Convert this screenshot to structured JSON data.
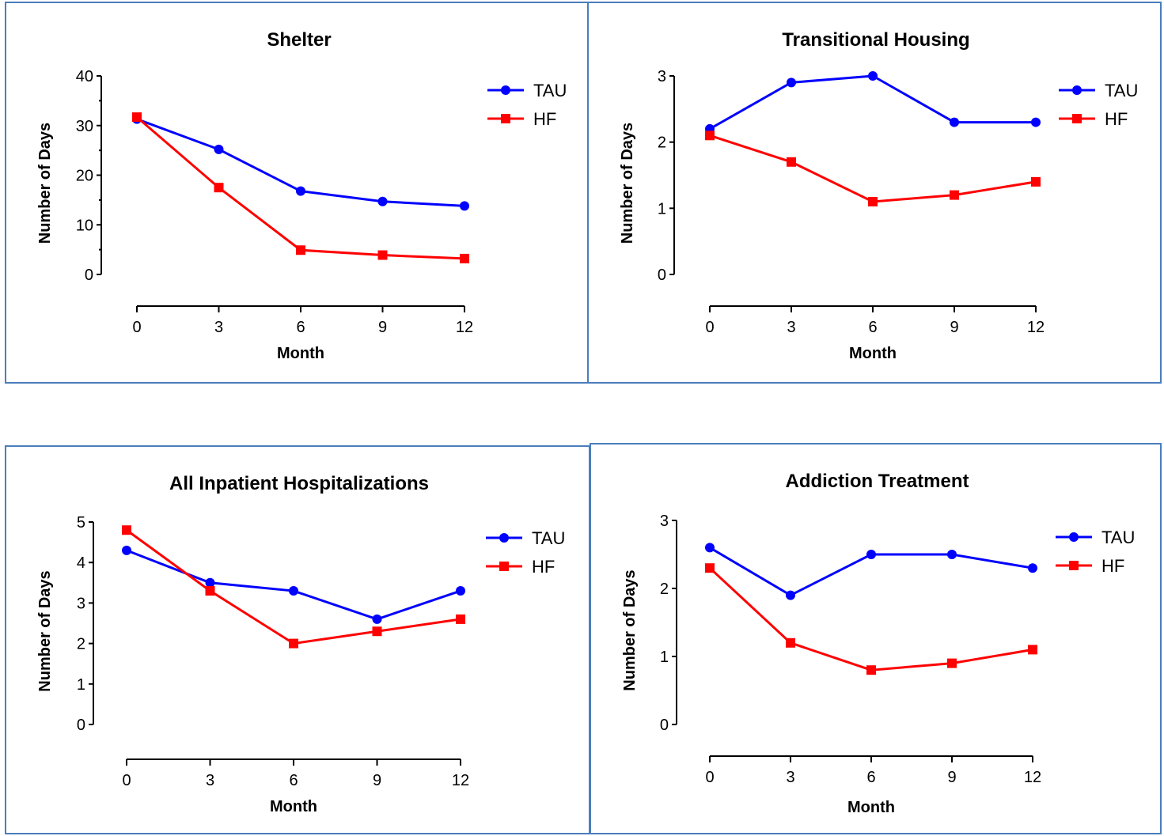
{
  "colors": {
    "TAU": "#0000ff",
    "HF": "#ff0000",
    "border": "#4a7ebb"
  },
  "chart_data": [
    {
      "type": "line",
      "title": "Shelter",
      "xlabel": "Month",
      "ylabel": "Number of Days",
      "x": [
        0,
        3,
        6,
        9,
        12
      ],
      "xticks": [
        "0",
        "3",
        "6",
        "9",
        "12"
      ],
      "yticks": [
        "0",
        "10",
        "20",
        "30",
        "40"
      ],
      "ylim": [
        0,
        40
      ],
      "legend": "top-right",
      "series": [
        {
          "name": "TAU",
          "marker": "circle",
          "values": [
            31.3,
            25.2,
            16.8,
            14.7,
            13.8
          ]
        },
        {
          "name": "HF",
          "marker": "square",
          "values": [
            31.7,
            17.5,
            4.9,
            3.9,
            3.2
          ]
        }
      ]
    },
    {
      "type": "line",
      "title": "Transitional Housing",
      "xlabel": "Month",
      "ylabel": "Number of Days",
      "x": [
        0,
        3,
        6,
        9,
        12
      ],
      "xticks": [
        "0",
        "3",
        "6",
        "9",
        "12"
      ],
      "yticks": [
        "0",
        "1",
        "2",
        "3"
      ],
      "ylim": [
        0,
        3
      ],
      "legend": "top-right",
      "series": [
        {
          "name": "TAU",
          "marker": "circle",
          "values": [
            2.2,
            2.9,
            3.0,
            2.3,
            2.3
          ]
        },
        {
          "name": "HF",
          "marker": "square",
          "values": [
            2.1,
            1.7,
            1.1,
            1.2,
            1.4
          ]
        }
      ]
    },
    {
      "type": "line",
      "title": "All Inpatient Hospitalizations",
      "xlabel": "Month",
      "ylabel": "Number of Days",
      "x": [
        0,
        3,
        6,
        9,
        12
      ],
      "xticks": [
        "0",
        "3",
        "6",
        "9",
        "12"
      ],
      "yticks": [
        "0",
        "1",
        "2",
        "3",
        "4",
        "5"
      ],
      "ylim": [
        0,
        5
      ],
      "legend": "top-right",
      "series": [
        {
          "name": "TAU",
          "marker": "circle",
          "values": [
            4.3,
            3.5,
            3.3,
            2.6,
            3.3
          ]
        },
        {
          "name": "HF",
          "marker": "square",
          "values": [
            4.8,
            3.3,
            2.0,
            2.3,
            2.6
          ]
        }
      ]
    },
    {
      "type": "line",
      "title": "Addiction Treatment",
      "xlabel": "Month",
      "ylabel": "Number of Days",
      "x": [
        0,
        3,
        6,
        9,
        12
      ],
      "xticks": [
        "0",
        "3",
        "6",
        "9",
        "12"
      ],
      "yticks": [
        "0",
        "1",
        "2",
        "3"
      ],
      "ylim": [
        0,
        3
      ],
      "legend": "top-right",
      "series": [
        {
          "name": "TAU",
          "marker": "circle",
          "values": [
            2.6,
            1.9,
            2.5,
            2.5,
            2.3
          ]
        },
        {
          "name": "HF",
          "marker": "square",
          "values": [
            2.3,
            1.2,
            0.8,
            0.9,
            1.1
          ]
        }
      ]
    }
  ]
}
